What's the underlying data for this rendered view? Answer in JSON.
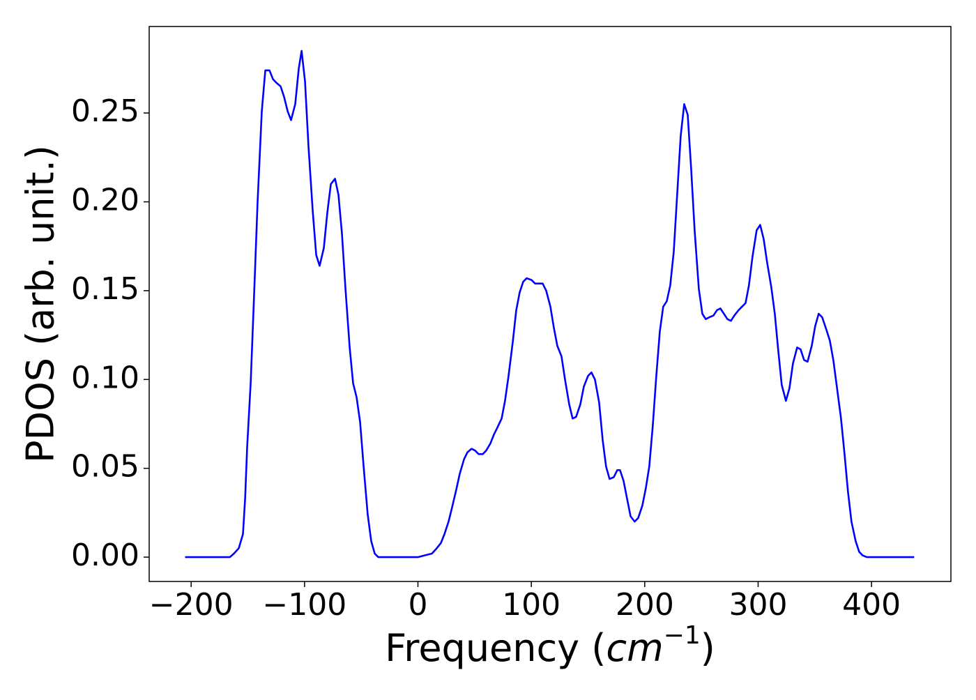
{
  "chart_data": {
    "type": "line",
    "x_label": [
      "Frequency (",
      "cm",
      "−1",
      ")"
    ],
    "y_label": "PDOS (arb. unit.)",
    "color": "#0000ff",
    "xlim": [
      -237,
      470
    ],
    "ylim": [
      -0.0137,
      0.2987
    ],
    "xticks": [
      {
        "value": -200,
        "label": "−200"
      },
      {
        "value": -100,
        "label": "−100"
      },
      0,
      100,
      200,
      300,
      400
    ],
    "yticks": [
      {
        "value": 0,
        "label": "0.00"
      },
      0.05,
      {
        "value": 0.1,
        "label": "0.10"
      },
      0.15,
      {
        "value": 0.2,
        "label": "0.20"
      },
      0.25
    ],
    "x": [
      -205.3,
      -165.9,
      -162.3,
      -158.0,
      -154.3,
      -152.4,
      -150.6,
      -147.5,
      -144.4,
      -141.4,
      -137.7,
      -134.6,
      -130.9,
      -127.8,
      -124.8,
      -121.1,
      -118.0,
      -114.9,
      -111.9,
      -108.2,
      -105.1,
      -102.6,
      -99.6,
      -96.5,
      -92.8,
      -89.7,
      -86.7,
      -83.0,
      -79.9,
      -76.8,
      -73.1,
      -70.1,
      -67.0,
      -63.9,
      -60.2,
      -57.2,
      -54.1,
      -51.0,
      -47.9,
      -44.3,
      -41.2,
      -38.1,
      -35.0,
      0,
      6.1,
      12.3,
      16.6,
      20.3,
      23.4,
      27.0,
      30.1,
      33.8,
      36.9,
      40.6,
      43.6,
      47.3,
      50.4,
      53.5,
      57.2,
      60.2,
      63.9,
      67.0,
      70.1,
      73.8,
      76.8,
      79.9,
      83.6,
      86.7,
      89.7,
      92.8,
      95.9,
      100.2,
      103.3,
      106.9,
      110.0,
      113.1,
      116.8,
      119.9,
      122.9,
      126.6,
      129.7,
      133.4,
      136.4,
      139.5,
      143.2,
      146.3,
      150.0,
      153.0,
      156.1,
      159.8,
      162.9,
      165.9,
      169.0,
      172.7,
      175.8,
      178.2,
      181.3,
      184.4,
      187.5,
      191.1,
      194.2,
      197.9,
      201.0,
      204.0,
      207.1,
      210.2,
      213.3,
      216.3,
      219.4,
      222.5,
      225.6,
      228.6,
      231.7,
      234.8,
      237.9,
      240.9,
      244.0,
      247.7,
      250.8,
      253.8,
      256.9,
      260.6,
      263.7,
      266.7,
      269.8,
      272.9,
      276.0,
      279.0,
      282.7,
      285.8,
      288.9,
      291.9,
      295.0,
      298.7,
      301.8,
      304.9,
      307.9,
      311.6,
      314.7,
      317.8,
      320.8,
      324.5,
      327.6,
      330.7,
      334.4,
      337.4,
      340.5,
      343.6,
      347.3,
      350.3,
      353.4,
      356.5,
      360.2,
      363.2,
      366.3,
      369.4,
      373.1,
      376.2,
      379.2,
      382.3,
      386.0,
      389.1,
      392.1,
      395.8,
      437.6
    ],
    "values": [
      0,
      0,
      0.002,
      0.005,
      0.013,
      0.033,
      0.062,
      0.098,
      0.149,
      0.2,
      0.251,
      0.274,
      0.274,
      0.269,
      0.267,
      0.265,
      0.259,
      0.251,
      0.246,
      0.255,
      0.275,
      0.285,
      0.268,
      0.231,
      0.195,
      0.17,
      0.164,
      0.174,
      0.194,
      0.21,
      0.213,
      0.204,
      0.182,
      0.151,
      0.118,
      0.098,
      0.09,
      0.076,
      0.051,
      0.024,
      0.009,
      0.002,
      0,
      0,
      0.001,
      0.002,
      0.005,
      0.008,
      0.013,
      0.02,
      0.028,
      0.038,
      0.047,
      0.055,
      0.059,
      0.061,
      0.06,
      0.058,
      0.058,
      0.06,
      0.064,
      0.069,
      0.073,
      0.078,
      0.088,
      0.102,
      0.121,
      0.139,
      0.149,
      0.155,
      0.157,
      0.156,
      0.154,
      0.154,
      0.154,
      0.15,
      0.141,
      0.129,
      0.119,
      0.113,
      0.1,
      0.086,
      0.078,
      0.079,
      0.086,
      0.096,
      0.102,
      0.104,
      0.1,
      0.087,
      0.066,
      0.051,
      0.044,
      0.045,
      0.049,
      0.049,
      0.043,
      0.033,
      0.023,
      0.02,
      0.022,
      0.029,
      0.039,
      0.051,
      0.074,
      0.102,
      0.127,
      0.141,
      0.144,
      0.153,
      0.172,
      0.204,
      0.237,
      0.255,
      0.249,
      0.219,
      0.184,
      0.151,
      0.137,
      0.134,
      0.135,
      0.136,
      0.139,
      0.14,
      0.137,
      0.134,
      0.133,
      0.136,
      0.139,
      0.141,
      0.143,
      0.153,
      0.169,
      0.184,
      0.187,
      0.179,
      0.166,
      0.152,
      0.137,
      0.116,
      0.097,
      0.088,
      0.095,
      0.109,
      0.118,
      0.117,
      0.111,
      0.11,
      0.119,
      0.13,
      0.137,
      0.135,
      0.128,
      0.122,
      0.111,
      0.096,
      0.078,
      0.058,
      0.037,
      0.02,
      0.009,
      0.003,
      0.001,
      0,
      0
    ]
  }
}
